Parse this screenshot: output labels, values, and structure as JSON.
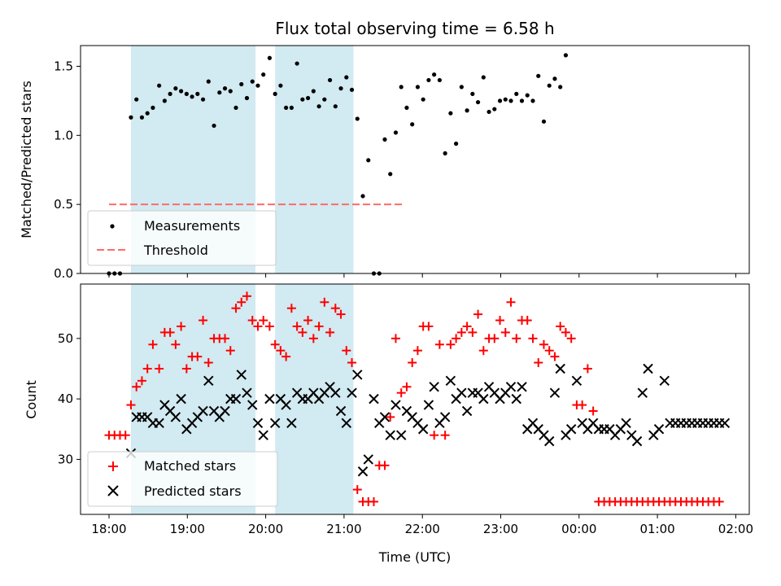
{
  "chart_data": [
    {
      "type": "scatter",
      "title": "Flux total observing time = 6.58 h",
      "xlabel": "",
      "ylabel": "Matched/Predicted stars",
      "ylim": [
        0,
        1.65
      ],
      "yticks": [
        "0.0",
        "0.5",
        "1.0",
        "1.5"
      ],
      "ytick_values": [
        0,
        0.5,
        1.0,
        1.5
      ],
      "x_unit": "hours since 18:00 UTC",
      "shaded_intervals": [
        [
          0.28,
          1.87
        ],
        [
          2.12,
          3.12
        ]
      ],
      "shade_color": "#add8e6",
      "threshold": {
        "name": "Threshold",
        "value": 0.5,
        "x_range": [
          0,
          3.78
        ],
        "color": "#ff6b6b"
      },
      "legend_position": "lower-left",
      "series": [
        {
          "name": "Measurements",
          "color": "#000000",
          "x": [
            0.0,
            0.07,
            0.14,
            0.28,
            0.35,
            0.42,
            0.49,
            0.56,
            0.64,
            0.71,
            0.78,
            0.85,
            0.92,
            0.99,
            1.06,
            1.13,
            1.2,
            1.27,
            1.34,
            1.41,
            1.48,
            1.55,
            1.62,
            1.69,
            1.76,
            1.83,
            1.9,
            1.97,
            2.05,
            2.12,
            2.19,
            2.26,
            2.33,
            2.4,
            2.47,
            2.54,
            2.61,
            2.68,
            2.75,
            2.82,
            2.89,
            2.96,
            3.03,
            3.1,
            3.17,
            3.24,
            3.31,
            3.38,
            3.45,
            3.52,
            3.59,
            3.66,
            3.73,
            3.8,
            3.87,
            3.94,
            4.01,
            4.08,
            4.15,
            4.22,
            4.29,
            4.36,
            4.43,
            4.5,
            4.57,
            4.64,
            4.71,
            4.78,
            4.85,
            4.92,
            4.99,
            5.06,
            5.13,
            5.2,
            5.27,
            5.34,
            5.41,
            5.48,
            5.55,
            5.62,
            5.69,
            5.76,
            5.83
          ],
          "y": [
            0.0,
            0.0,
            0.0,
            1.13,
            1.26,
            1.13,
            1.16,
            1.2,
            1.36,
            1.25,
            1.3,
            1.34,
            1.32,
            1.3,
            1.28,
            1.3,
            1.26,
            1.39,
            1.07,
            1.31,
            1.34,
            1.32,
            1.2,
            1.37,
            1.27,
            1.39,
            1.36,
            1.44,
            1.56,
            1.3,
            1.36,
            1.2,
            1.2,
            1.52,
            1.26,
            1.27,
            1.32,
            1.21,
            1.26,
            1.4,
            1.21,
            1.34,
            1.42,
            1.33,
            1.12,
            0.56,
            0.82,
            0.0,
            0.0,
            0.97,
            0.72,
            1.02,
            1.35,
            1.2,
            1.08,
            1.35,
            1.26,
            1.4,
            1.44,
            1.4,
            0.87,
            1.16,
            0.94,
            1.35,
            1.18,
            1.3,
            1.24,
            1.42,
            1.17,
            1.19,
            1.25,
            1.26,
            1.25,
            1.3,
            1.25,
            1.29,
            1.25,
            1.43,
            1.1,
            1.36,
            1.41,
            1.35,
            1.58
          ]
        }
      ]
    },
    {
      "type": "scatter",
      "title": "",
      "xlabel": "Time (UTC)",
      "ylabel": "Count",
      "ylim": [
        20.9,
        59
      ],
      "yticks": [
        "30",
        "40",
        "50"
      ],
      "ytick_values": [
        30,
        40,
        50
      ],
      "xticks": [
        "18:00",
        "19:00",
        "20:00",
        "21:00",
        "22:00",
        "23:00",
        "00:00",
        "01:00",
        "02:00"
      ],
      "xtick_values": [
        0,
        1,
        2,
        3,
        4,
        5,
        6,
        7,
        8
      ],
      "x_unit": "hours since 18:00 UTC",
      "shaded_intervals": [
        [
          0.28,
          1.87
        ],
        [
          2.12,
          3.12
        ]
      ],
      "shade_color": "#add8e6",
      "legend_position": "lower-left",
      "series": [
        {
          "name": "Matched stars",
          "color": "#ff0000",
          "marker": "plus",
          "x": [
            0.0,
            0.07,
            0.14,
            0.21,
            0.28,
            0.35,
            0.42,
            0.49,
            0.56,
            0.64,
            0.71,
            0.78,
            0.85,
            0.92,
            0.99,
            1.06,
            1.13,
            1.2,
            1.27,
            1.34,
            1.41,
            1.48,
            1.55,
            1.62,
            1.69,
            1.76,
            1.83,
            1.9,
            1.97,
            2.05,
            2.12,
            2.19,
            2.26,
            2.33,
            2.4,
            2.47,
            2.54,
            2.61,
            2.68,
            2.75,
            2.82,
            2.89,
            2.96,
            3.03,
            3.1,
            3.17,
            3.24,
            3.31,
            3.38,
            3.45,
            3.52,
            3.59,
            3.66,
            3.73,
            3.8,
            3.87,
            3.94,
            4.01,
            4.08,
            4.15,
            4.22,
            4.29,
            4.36,
            4.43,
            4.5,
            4.57,
            4.64,
            4.71,
            4.78,
            4.85,
            4.92,
            4.99,
            5.06,
            5.13,
            5.2,
            5.27,
            5.34,
            5.41,
            5.48,
            5.55,
            5.62,
            5.69,
            5.76,
            5.83,
            5.9,
            5.97,
            6.04,
            6.11,
            6.18,
            6.25,
            6.32,
            6.39,
            6.46,
            6.53,
            6.6,
            6.67,
            6.74,
            6.81,
            6.88,
            6.95,
            7.02,
            7.09,
            7.16,
            7.23,
            7.3,
            7.37,
            7.44,
            7.51,
            7.58,
            7.65,
            7.72,
            7.79
          ],
          "y": [
            34,
            34,
            34,
            34,
            39,
            42,
            43,
            45,
            49,
            45,
            51,
            51,
            49,
            52,
            45,
            47,
            47,
            53,
            46,
            50,
            50,
            50,
            48,
            55,
            56,
            57,
            53,
            52,
            53,
            52,
            49,
            48,
            47,
            55,
            52,
            51,
            53,
            50,
            52,
            56,
            51,
            55,
            54,
            48,
            46,
            25,
            23,
            23,
            23,
            29,
            29,
            37,
            50,
            41,
            42,
            46,
            48,
            52,
            52,
            34,
            49,
            34,
            49,
            50,
            51,
            52,
            51,
            54,
            48,
            50,
            50,
            53,
            51,
            56,
            50,
            53,
            53,
            50,
            46,
            49,
            48,
            47,
            52,
            51,
            50,
            39,
            39,
            45,
            38,
            23,
            23,
            23,
            23,
            23,
            23,
            23,
            23,
            23,
            23,
            23,
            23,
            23,
            23,
            23,
            23,
            23,
            23,
            23,
            23,
            23,
            23,
            23
          ]
        },
        {
          "name": "Predicted stars",
          "color": "#000000",
          "marker": "x",
          "x": [
            0.28,
            0.35,
            0.42,
            0.49,
            0.56,
            0.64,
            0.71,
            0.78,
            0.85,
            0.92,
            0.99,
            1.06,
            1.13,
            1.2,
            1.27,
            1.34,
            1.41,
            1.48,
            1.55,
            1.62,
            1.69,
            1.76,
            1.83,
            1.9,
            1.97,
            2.05,
            2.12,
            2.19,
            2.26,
            2.33,
            2.4,
            2.47,
            2.54,
            2.61,
            2.68,
            2.75,
            2.82,
            2.89,
            2.96,
            3.03,
            3.1,
            3.17,
            3.24,
            3.31,
            3.38,
            3.45,
            3.52,
            3.59,
            3.66,
            3.73,
            3.8,
            3.87,
            3.94,
            4.01,
            4.08,
            4.15,
            4.22,
            4.29,
            4.36,
            4.43,
            4.5,
            4.57,
            4.64,
            4.71,
            4.78,
            4.85,
            4.92,
            4.99,
            5.06,
            5.13,
            5.2,
            5.27,
            5.34,
            5.41,
            5.48,
            5.55,
            5.62,
            5.69,
            5.76,
            5.83,
            5.9,
            5.97,
            6.04,
            6.11,
            6.18,
            6.25,
            6.32,
            6.39,
            6.46,
            6.53,
            6.6,
            6.67,
            6.74,
            6.81,
            6.88,
            6.95,
            7.02,
            7.09,
            7.16,
            7.23,
            7.3,
            7.37,
            7.44,
            7.51,
            7.58,
            7.65,
            7.72,
            7.79,
            7.86
          ],
          "y": [
            31,
            37,
            37,
            37,
            36,
            36,
            39,
            38,
            37,
            40,
            35,
            36,
            37,
            38,
            43,
            38,
            37,
            38,
            40,
            40,
            44,
            41,
            39,
            36,
            34,
            40,
            36,
            40,
            39,
            36,
            41,
            40,
            40,
            41,
            40,
            41,
            42,
            41,
            38,
            36,
            41,
            44,
            28,
            30,
            40,
            36,
            37,
            34,
            39,
            34,
            38,
            37,
            36,
            35,
            39,
            42,
            36,
            37,
            43,
            40,
            41,
            38,
            41,
            41,
            40,
            42,
            41,
            40,
            41,
            42,
            40,
            42,
            35,
            36,
            35,
            34,
            33,
            41,
            45,
            34,
            35,
            43,
            36,
            35,
            36,
            35,
            35,
            35,
            34,
            35,
            36,
            34,
            33,
            41,
            45,
            34,
            35,
            43,
            36,
            36,
            36,
            36,
            36,
            36,
            36,
            36,
            36,
            36,
            36
          ]
        }
      ]
    }
  ]
}
